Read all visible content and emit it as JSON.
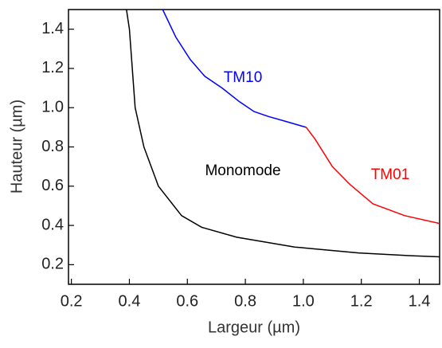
{
  "chart_data": {
    "type": "line",
    "x_label": "Largeur (µm)",
    "y_label": "Hauteur (µm)",
    "xlim": [
      0.19,
      1.47
    ],
    "ylim": [
      0.1,
      1.5
    ],
    "xticks": [
      0.2,
      0.4,
      0.6,
      0.8,
      {
        "value": 1,
        "label": "1.0"
      },
      1.2,
      1.4
    ],
    "yticks": [
      0.2,
      0.4,
      0.6,
      0.8,
      {
        "value": 1,
        "label": "1.0"
      },
      1.2,
      1.4
    ],
    "series": [
      {
        "color": "#000000",
        "x": [
          0.39,
          0.4,
          0.41,
          0.42,
          0.45,
          0.5,
          0.58,
          0.65,
          0.77,
          0.97,
          1.19,
          1.38,
          1.47
        ],
        "values": [
          1.5,
          1.4,
          1.2,
          1.0,
          0.8,
          0.6,
          0.45,
          0.39,
          0.34,
          0.29,
          0.26,
          0.245,
          0.24
        ]
      },
      {
        "name": "TM10",
        "color": "#0000ff",
        "x": [
          0.515,
          0.56,
          0.61,
          0.66,
          0.72,
          0.78,
          0.83,
          0.88,
          0.94,
          1.01
        ],
        "values": [
          1.5,
          1.36,
          1.245,
          1.16,
          1.1,
          1.03,
          0.98,
          0.955,
          0.93,
          0.9
        ]
      },
      {
        "name": "TM01",
        "color": "#ff0000",
        "x": [
          1.01,
          1.04,
          1.1,
          1.16,
          1.24,
          1.35,
          1.47
        ],
        "values": [
          0.9,
          0.84,
          0.7,
          0.61,
          0.51,
          0.45,
          0.41
        ]
      }
    ],
    "annotations": [
      {
        "text": "TM10",
        "color": "#0000ff"
      },
      {
        "text": "Monomode",
        "color": "#000000"
      },
      {
        "text": "TM01",
        "color": "#ff0000"
      }
    ]
  }
}
